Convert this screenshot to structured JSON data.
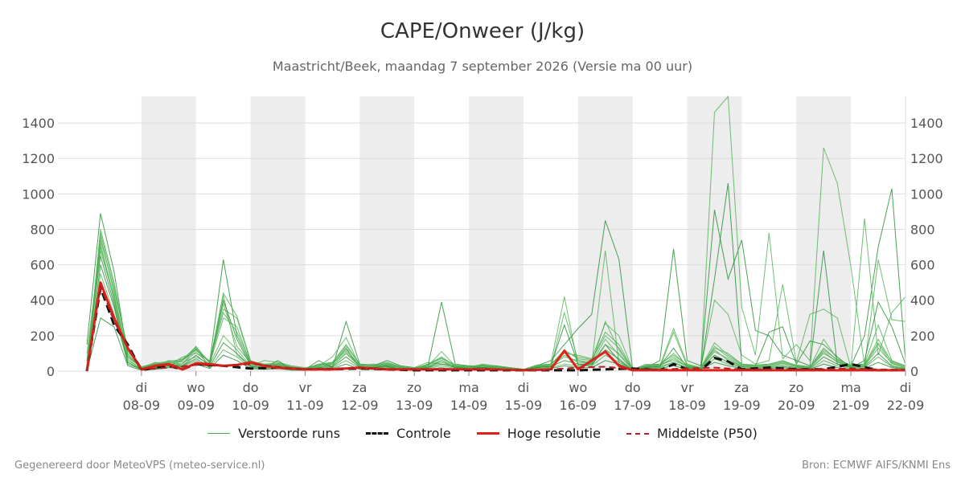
{
  "title": "CAPE/Onweer (J/kg)",
  "subtitle": "Maastricht/Beek, maandag  7 september 2026 (Versie ma 00 uur)",
  "footer": {
    "left": "Gegenereerd door MeteoVPS (meteo-service.nl)",
    "right": "Bron: ECMWF AIFS/KNMI Ens"
  },
  "colors": {
    "ensemble": "#4caf50",
    "ensemble_dark": "#1e8a2e",
    "control": "#111111",
    "highres": "#e0201b",
    "median": "#b22222",
    "shade": "#ededed",
    "grid": "#dddddd"
  },
  "legend": [
    {
      "label": "Verstoorde runs",
      "key": "ensemble"
    },
    {
      "label": "Controle",
      "key": "control"
    },
    {
      "label": "Hoge resolutie",
      "key": "highres"
    },
    {
      "label": "Middelste (P50)",
      "key": "median"
    }
  ],
  "chart_data": {
    "type": "line",
    "x_start_day": "07-09",
    "x_range_days": [
      0,
      15
    ],
    "ylim": [
      0,
      1550
    ],
    "yticks": [
      0,
      200,
      400,
      600,
      800,
      1000,
      1200,
      1400
    ],
    "grid": true,
    "x_ticks": [
      {
        "day": 1,
        "weekday": "di",
        "date": "08-09"
      },
      {
        "day": 2,
        "weekday": "wo",
        "date": "09-09"
      },
      {
        "day": 3,
        "weekday": "do",
        "date": "10-09"
      },
      {
        "day": 4,
        "weekday": "vr",
        "date": "11-09"
      },
      {
        "day": 5,
        "weekday": "za",
        "date": "12-09"
      },
      {
        "day": 6,
        "weekday": "zo",
        "date": "13-09"
      },
      {
        "day": 7,
        "weekday": "ma",
        "date": "14-09"
      },
      {
        "day": 8,
        "weekday": "di",
        "date": "15-09"
      },
      {
        "day": 9,
        "weekday": "wo",
        "date": "16-09"
      },
      {
        "day": 10,
        "weekday": "do",
        "date": "17-09"
      },
      {
        "day": 11,
        "weekday": "vr",
        "date": "18-09"
      },
      {
        "day": 12,
        "weekday": "za",
        "date": "19-09"
      },
      {
        "day": 13,
        "weekday": "zo",
        "date": "20-09"
      },
      {
        "day": 14,
        "weekday": "ma",
        "date": "21-09"
      },
      {
        "day": 15,
        "weekday": "di",
        "date": "22-09"
      }
    ],
    "shaded_days": [
      [
        1,
        2
      ],
      [
        3,
        4
      ],
      [
        5,
        6
      ],
      [
        7,
        8
      ],
      [
        9,
        10
      ],
      [
        11,
        12
      ],
      [
        13,
        14
      ]
    ],
    "series": [
      {
        "name": "Controle",
        "style": "control",
        "x": [
          0,
          0.25,
          0.5,
          0.75,
          1,
          1.25,
          1.5,
          1.75,
          2,
          2.5,
          3,
          3.5,
          4,
          4.5,
          5,
          5.5,
          6,
          6.5,
          7,
          7.5,
          8,
          8.5,
          9,
          9.5,
          10,
          10.5,
          10.75,
          11,
          11.25,
          11.5,
          11.75,
          12,
          12.5,
          13,
          13.5,
          14,
          14.5,
          15
        ],
        "y": [
          0,
          470,
          260,
          150,
          5,
          20,
          30,
          10,
          40,
          30,
          15,
          20,
          10,
          10,
          15,
          10,
          5,
          5,
          5,
          5,
          5,
          5,
          5,
          10,
          15,
          5,
          40,
          10,
          5,
          75,
          55,
          10,
          20,
          10,
          10,
          40,
          5,
          5
        ]
      },
      {
        "name": "Hoge resolutie",
        "style": "highres",
        "x": [
          0,
          0.25,
          0.5,
          0.75,
          1,
          1.25,
          1.5,
          1.75,
          2,
          2.25,
          2.5,
          2.75,
          3,
          3.25,
          3.5,
          4,
          4.5,
          5,
          5.5,
          6,
          6.5,
          7,
          7.5,
          8,
          8.5,
          8.75,
          9,
          9.25,
          9.5,
          9.75,
          10,
          10.5,
          11,
          11.5,
          12,
          12.5,
          13,
          13.5,
          14,
          14.5,
          15
        ],
        "y": [
          0,
          500,
          300,
          130,
          10,
          30,
          40,
          10,
          45,
          40,
          30,
          35,
          50,
          30,
          20,
          10,
          10,
          20,
          10,
          10,
          10,
          10,
          10,
          5,
          10,
          115,
          10,
          60,
          110,
          30,
          5,
          5,
          5,
          5,
          5,
          5,
          5,
          5,
          5,
          5,
          5
        ]
      },
      {
        "name": "Middelste (P50)",
        "style": "median",
        "x": [
          0,
          0.25,
          0.5,
          0.75,
          1,
          1.5,
          2,
          2.5,
          3,
          3.5,
          4,
          4.5,
          5,
          5.5,
          6,
          6.5,
          7,
          7.5,
          8,
          8.5,
          9,
          9.5,
          10,
          10.5,
          11,
          11.5,
          12,
          12.5,
          13,
          13.5,
          14,
          14.5,
          15
        ],
        "y": [
          0,
          480,
          280,
          140,
          8,
          20,
          35,
          30,
          40,
          25,
          10,
          15,
          20,
          10,
          10,
          8,
          10,
          8,
          5,
          10,
          20,
          25,
          10,
          10,
          15,
          20,
          10,
          10,
          10,
          10,
          15,
          10,
          8
        ]
      }
    ],
    "ensemble": {
      "name": "Verstoorde runs",
      "x": [
        0,
        0.25,
        0.5,
        0.75,
        1,
        1.25,
        1.5,
        1.75,
        2,
        2.25,
        2.5,
        2.75,
        3,
        3.25,
        3.5,
        3.75,
        4,
        4.25,
        4.5,
        4.75,
        5,
        5.25,
        5.5,
        5.75,
        6,
        6.25,
        6.5,
        6.75,
        7,
        7.25,
        7.5,
        7.75,
        8,
        8.25,
        8.5,
        8.75,
        9,
        9.25,
        9.5,
        9.75,
        10,
        10.25,
        10.5,
        10.75,
        11,
        11.25,
        11.5,
        11.75,
        12,
        12.25,
        12.5,
        12.75,
        13,
        13.25,
        13.5,
        13.75,
        14,
        14.25,
        14.5,
        14.75,
        15
      ],
      "members": [
        [
          150,
          890,
          560,
          80,
          20,
          40,
          30,
          60,
          120,
          50,
          630,
          200,
          40,
          30,
          40,
          20,
          10,
          60,
          20,
          280,
          40,
          30,
          60,
          30,
          20,
          30,
          390,
          40,
          30,
          20,
          30,
          20,
          10,
          30,
          60,
          150,
          240,
          320,
          850,
          630,
          10,
          20,
          60,
          690,
          60,
          30,
          910,
          520,
          740,
          230,
          200,
          90,
          60,
          30,
          680,
          40,
          30,
          200,
          700,
          1030,
          60
        ],
        [
          0,
          800,
          500,
          100,
          10,
          30,
          50,
          40,
          130,
          20,
          430,
          90,
          30,
          60,
          50,
          30,
          20,
          30,
          80,
          190,
          30,
          20,
          40,
          20,
          20,
          50,
          40,
          30,
          20,
          40,
          30,
          20,
          10,
          20,
          40,
          420,
          30,
          40,
          680,
          40,
          10,
          40,
          30,
          240,
          40,
          20,
          1460,
          1550,
          360,
          90,
          780,
          70,
          150,
          60,
          1260,
          1060,
          590,
          30,
          630,
          290,
          280
        ],
        [
          100,
          700,
          420,
          60,
          15,
          50,
          30,
          80,
          100,
          60,
          350,
          300,
          50,
          40,
          30,
          20,
          10,
          40,
          30,
          100,
          30,
          40,
          30,
          20,
          15,
          30,
          110,
          30,
          30,
          30,
          20,
          20,
          10,
          30,
          20,
          330,
          60,
          40,
          280,
          120,
          10,
          30,
          20,
          220,
          30,
          20,
          400,
          320,
          90,
          40,
          60,
          490,
          50,
          320,
          350,
          300,
          20,
          860,
          90,
          330,
          420
        ],
        [
          60,
          650,
          380,
          50,
          10,
          20,
          40,
          30,
          90,
          30,
          400,
          180,
          30,
          20,
          60,
          10,
          10,
          20,
          40,
          130,
          20,
          20,
          30,
          10,
          10,
          20,
          60,
          20,
          20,
          20,
          20,
          10,
          10,
          20,
          30,
          260,
          40,
          30,
          150,
          60,
          5,
          20,
          30,
          130,
          20,
          15,
          520,
          1060,
          40,
          30,
          220,
          250,
          40,
          170,
          150,
          80,
          20,
          60,
          390,
          250,
          40
        ],
        [
          40,
          760,
          440,
          90,
          20,
          30,
          60,
          50,
          80,
          40,
          300,
          250,
          40,
          30,
          40,
          20,
          10,
          30,
          50,
          150,
          40,
          30,
          40,
          20,
          15,
          40,
          80,
          30,
          20,
          30,
          20,
          20,
          10,
          30,
          40,
          100,
          90,
          70,
          270,
          200,
          10,
          30,
          40,
          60,
          30,
          20,
          160,
          90,
          40,
          30,
          40,
          60,
          30,
          20,
          180,
          70,
          30,
          40,
          260,
          60,
          30
        ],
        [
          0,
          720,
          400,
          70,
          10,
          25,
          35,
          40,
          110,
          35,
          200,
          120,
          30,
          25,
          30,
          15,
          10,
          25,
          30,
          100,
          25,
          25,
          35,
          15,
          10,
          25,
          50,
          25,
          20,
          25,
          20,
          15,
          10,
          25,
          30,
          80,
          60,
          50,
          180,
          90,
          10,
          25,
          30,
          80,
          25,
          20,
          120,
          60,
          30,
          25,
          30,
          40,
          25,
          20,
          110,
          50,
          25,
          30,
          150,
          40,
          20
        ],
        [
          0,
          600,
          360,
          40,
          10,
          20,
          30,
          30,
          70,
          25,
          160,
          100,
          25,
          20,
          25,
          10,
          5,
          20,
          25,
          80,
          20,
          20,
          25,
          10,
          10,
          20,
          40,
          20,
          15,
          20,
          15,
          10,
          5,
          20,
          25,
          60,
          40,
          40,
          120,
          70,
          5,
          20,
          25,
          50,
          20,
          15,
          90,
          50,
          25,
          20,
          25,
          30,
          20,
          15,
          80,
          40,
          20,
          25,
          100,
          30,
          15
        ],
        [
          0,
          780,
          480,
          120,
          15,
          35,
          45,
          60,
          140,
          45,
          440,
          310,
          60,
          35,
          40,
          25,
          15,
          35,
          45,
          120,
          35,
          30,
          45,
          25,
          15,
          35,
          70,
          30,
          25,
          35,
          25,
          20,
          10,
          30,
          35,
          120,
          70,
          60,
          220,
          150,
          10,
          30,
          35,
          100,
          30,
          20,
          140,
          80,
          35,
          30,
          35,
          50,
          30,
          25,
          130,
          60,
          30,
          35,
          180,
          50,
          25
        ],
        [
          0,
          550,
          320,
          50,
          10,
          15,
          25,
          25,
          60,
          20,
          120,
          80,
          20,
          15,
          20,
          10,
          5,
          15,
          20,
          60,
          15,
          15,
          20,
          10,
          5,
          15,
          30,
          15,
          10,
          15,
          10,
          10,
          5,
          15,
          20,
          40,
          30,
          30,
          90,
          50,
          5,
          15,
          20,
          40,
          15,
          10,
          70,
          40,
          20,
          15,
          20,
          25,
          15,
          10,
          60,
          30,
          15,
          20,
          80,
          25,
          10
        ],
        [
          0,
          300,
          250,
          30,
          5,
          10,
          20,
          20,
          40,
          15,
          90,
          60,
          15,
          10,
          15,
          5,
          5,
          10,
          15,
          40,
          10,
          10,
          15,
          5,
          5,
          10,
          20,
          10,
          10,
          10,
          10,
          5,
          5,
          10,
          15,
          30,
          20,
          20,
          60,
          40,
          5,
          10,
          15,
          30,
          10,
          10,
          50,
          30,
          15,
          10,
          15,
          20,
          10,
          10,
          40,
          20,
          10,
          15,
          50,
          20,
          10
        ],
        [
          0,
          680,
          410,
          110,
          20,
          40,
          50,
          70,
          125,
          55,
          380,
          140,
          45,
          30,
          35,
          20,
          10,
          30,
          40,
          110,
          30,
          25,
          40,
          20,
          10,
          30,
          60,
          25,
          20,
          30,
          20,
          15,
          10,
          25,
          30,
          90,
          50,
          45,
          150,
          100,
          10,
          25,
          30,
          70,
          25,
          15,
          110,
          70,
          30,
          25,
          30,
          45,
          25,
          20,
          100,
          55,
          25,
          30,
          130,
          45,
          20
        ],
        [
          0,
          740,
          460,
          130,
          25,
          45,
          55,
          65,
          135,
          50,
          330,
          220,
          55,
          40,
          45,
          25,
          15,
          40,
          50,
          140,
          40,
          35,
          50,
          25,
          15,
          40,
          75,
          35,
          25,
          35,
          25,
          20,
          10,
          35,
          40,
          110,
          80,
          65,
          200,
          130,
          10,
          35,
          40,
          90,
          35,
          20,
          130,
          100,
          40,
          35,
          40,
          55,
          35,
          25,
          120,
          65,
          35,
          40,
          160,
          55,
          30
        ]
      ]
    }
  }
}
